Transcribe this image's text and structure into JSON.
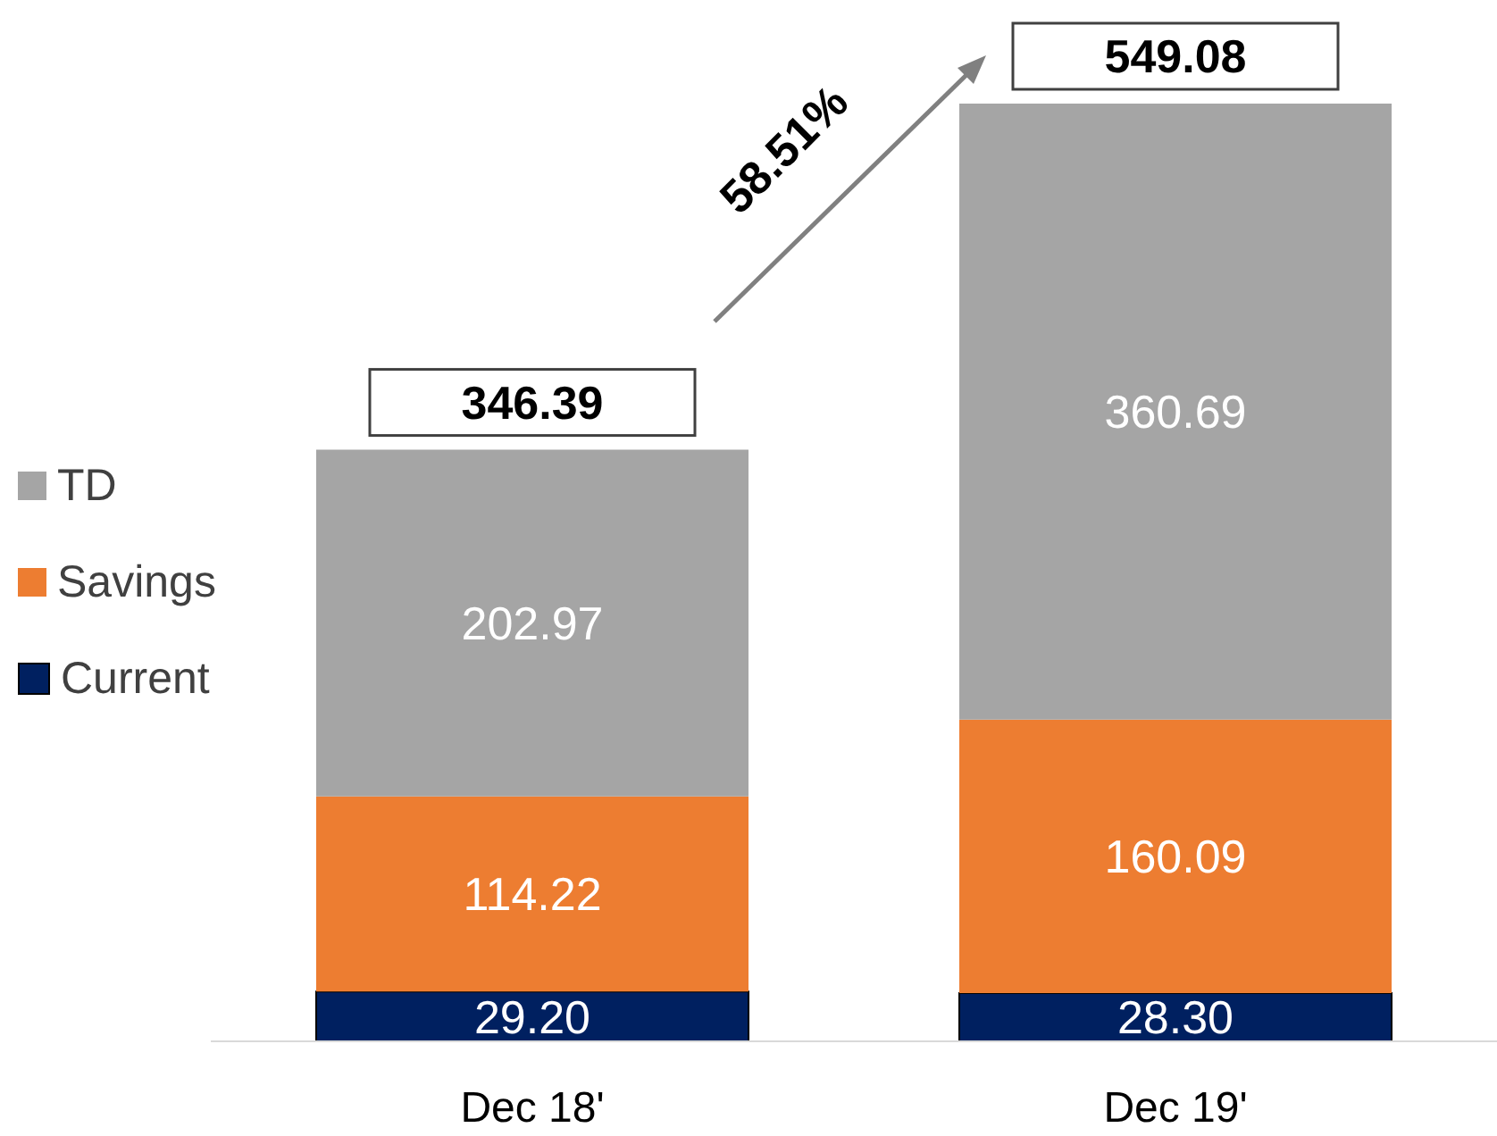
{
  "chart_data": {
    "type": "bar",
    "stacked": true,
    "categories": [
      "Dec 18'",
      "Dec 19'"
    ],
    "series": [
      {
        "name": "Current",
        "color": "#002060",
        "values": [
          29.2,
          28.3
        ],
        "value_labels": [
          "29.20",
          "28.30"
        ]
      },
      {
        "name": "Savings",
        "color": "#ed7d31",
        "values": [
          114.22,
          160.09
        ],
        "value_labels": [
          "114.22",
          "160.09"
        ]
      },
      {
        "name": "TD",
        "color": "#a5a5a5",
        "values": [
          202.97,
          360.69
        ],
        "value_labels": [
          "202.97",
          "360.69"
        ]
      }
    ],
    "totals": [
      "346.39",
      "549.08"
    ],
    "annotations": [
      "58.51%"
    ],
    "legend": "left",
    "grid": false
  }
}
